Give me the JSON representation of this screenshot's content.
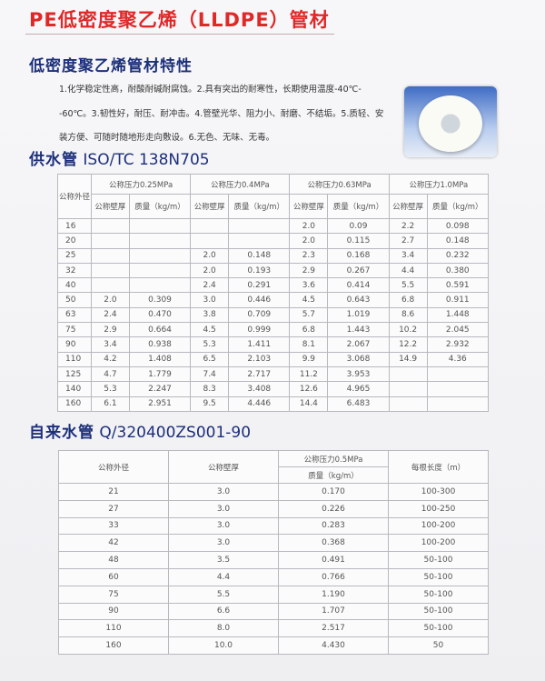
{
  "title": "PE低密度聚乙烯（LLDPE）管材",
  "features_heading": "低密度聚乙烯管材特性",
  "features_text": "1.化学稳定性高，耐酸耐碱耐腐蚀。2.具有突出的耐寒性，长期使用温度-40℃--60℃。3.韧性好，耐压、耐冲击。4.管壁光华、阻力小、耐磨、不结垢。5.质轻、安装方便、可随时随地形走向敷设。6.无色、无味、无毒。",
  "supply": {
    "heading_cn": "供水管",
    "heading_std": "ISO/TC 138N705",
    "col_diameter": "公称外径",
    "pressures": [
      "公称压力0.25MPa",
      "公称压力0.4MPa",
      "公称压力0.63MPa",
      "公称压力1.0MPa"
    ],
    "col_wall": "公称壁厚",
    "col_mass": "质量（kg/m）",
    "rows": [
      [
        "16",
        "",
        "",
        "",
        "",
        "2.0",
        "0.09",
        "2.2",
        "0.098"
      ],
      [
        "20",
        "",
        "",
        "",
        "",
        "2.0",
        "0.115",
        "2.7",
        "0.148"
      ],
      [
        "25",
        "",
        "",
        "2.0",
        "0.148",
        "2.3",
        "0.168",
        "3.4",
        "0.232"
      ],
      [
        "32",
        "",
        "",
        "2.0",
        "0.193",
        "2.9",
        "0.267",
        "4.4",
        "0.380"
      ],
      [
        "40",
        "",
        "",
        "2.4",
        "0.291",
        "3.6",
        "0.414",
        "5.5",
        "0.591"
      ],
      [
        "50",
        "2.0",
        "0.309",
        "3.0",
        "0.446",
        "4.5",
        "0.643",
        "6.8",
        "0.911"
      ],
      [
        "63",
        "2.4",
        "0.470",
        "3.8",
        "0.709",
        "5.7",
        "1.019",
        "8.6",
        "1.448"
      ],
      [
        "75",
        "2.9",
        "0.664",
        "4.5",
        "0.999",
        "6.8",
        "1.443",
        "10.2",
        "2.045"
      ],
      [
        "90",
        "3.4",
        "0.938",
        "5.3",
        "1.411",
        "8.1",
        "2.067",
        "12.2",
        "2.932"
      ],
      [
        "110",
        "4.2",
        "1.408",
        "6.5",
        "2.103",
        "9.9",
        "3.068",
        "14.9",
        "4.36"
      ],
      [
        "125",
        "4.7",
        "1.779",
        "7.4",
        "2.717",
        "11.2",
        "3.953",
        "",
        ""
      ],
      [
        "140",
        "5.3",
        "2.247",
        "8.3",
        "3.408",
        "12.6",
        "4.965",
        "",
        ""
      ],
      [
        "160",
        "6.1",
        "2.951",
        "9.5",
        "4.446",
        "14.4",
        "6.483",
        "",
        ""
      ]
    ]
  },
  "tap": {
    "heading_cn": "自来水管",
    "heading_std": "Q/320400ZS001-90",
    "col_diameter": "公称外径",
    "col_wall": "公称壁厚",
    "pressure": "公称压力0.5MPa",
    "col_mass": "质量（kg/m）",
    "col_length": "每根长度（m）",
    "rows": [
      [
        "21",
        "3.0",
        "0.170",
        "100-300"
      ],
      [
        "27",
        "3.0",
        "0.226",
        "100-250"
      ],
      [
        "33",
        "3.0",
        "0.283",
        "100-200"
      ],
      [
        "42",
        "3.0",
        "0.368",
        "100-200"
      ],
      [
        "48",
        "3.5",
        "0.491",
        "50-100"
      ],
      [
        "60",
        "4.4",
        "0.766",
        "50-100"
      ],
      [
        "75",
        "5.5",
        "1.190",
        "50-100"
      ],
      [
        "90",
        "6.6",
        "1.707",
        "50-100"
      ],
      [
        "110",
        "8.0",
        "2.517",
        "50-100"
      ],
      [
        "160",
        "10.0",
        "4.430",
        "50"
      ]
    ]
  },
  "colors": {
    "title": "#e02828",
    "heading": "#1c2f7a"
  }
}
